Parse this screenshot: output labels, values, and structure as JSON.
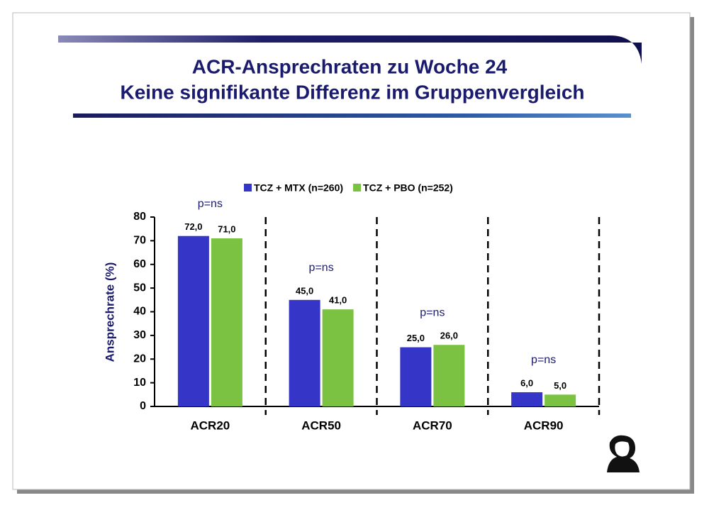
{
  "chart_data": {
    "type": "bar",
    "title": "ACR-Ansprechraten zu Woche 24",
    "subtitle": "Keine signifikante Differenz im Gruppenvergleich",
    "y_label": "Ansprechrate (%)",
    "categories": [
      "ACR20",
      "ACR50",
      "ACR70",
      "ACR90"
    ],
    "series": [
      {
        "name": "TCZ + MTX (n=260)",
        "color": "#3535c8",
        "values": [
          72,
          45,
          25,
          6
        ],
        "value_labels": [
          "72,0",
          "45,0",
          "25,0",
          "6,0"
        ]
      },
      {
        "name": "TCZ + PBO (n=252)",
        "color": "#7cc242",
        "values": [
          71,
          41,
          26,
          5
        ],
        "value_labels": [
          "71,0",
          "41,0",
          "26,0",
          "5,0"
        ]
      }
    ],
    "annotations": [
      "p=ns",
      "p=ns",
      "p=ns",
      "p=ns"
    ],
    "ylim": [
      0,
      80
    ],
    "yticks": [
      0,
      10,
      20,
      30,
      40,
      50,
      60,
      70,
      80
    ],
    "group_separators": true
  }
}
